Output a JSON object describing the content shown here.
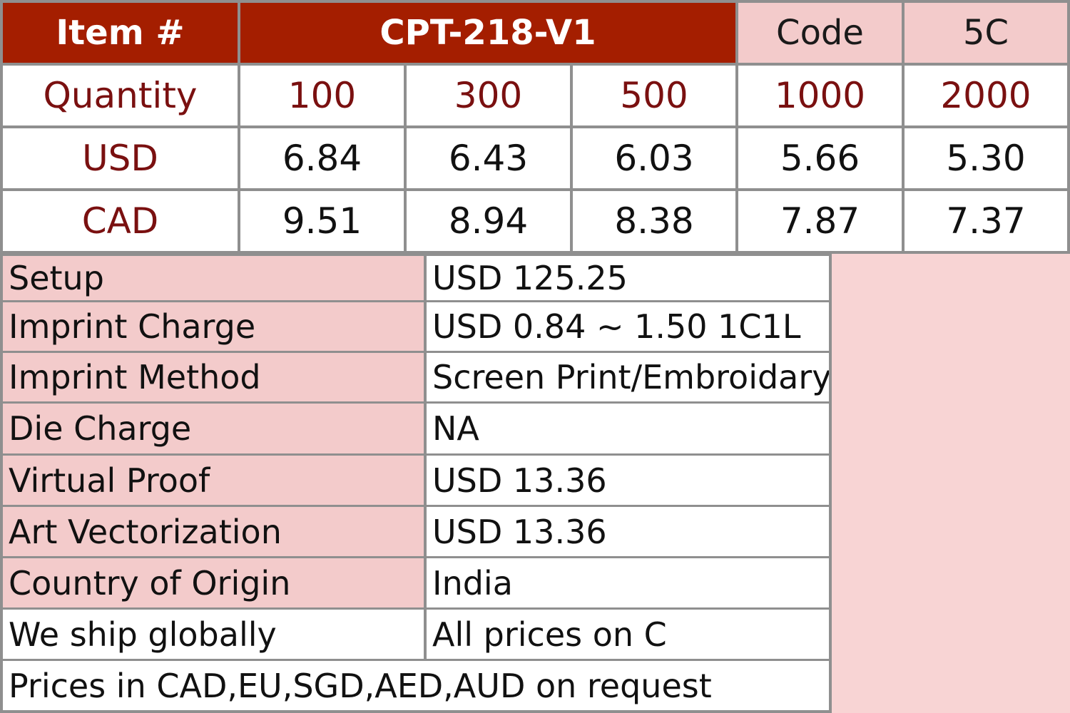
{
  "header": {
    "item_label": "Item #",
    "item_value": "CPT-218-V1",
    "code_label": "Code",
    "code_value": "5C"
  },
  "quantity_row": {
    "label": "Quantity",
    "values": [
      "100",
      "300",
      "500",
      "1000",
      "2000"
    ]
  },
  "price_rows": [
    {
      "currency": "USD",
      "prices": [
        "6.84",
        "6.43",
        "6.03",
        "5.66",
        "5.30"
      ]
    },
    {
      "currency": "CAD",
      "prices": [
        "9.51",
        "8.94",
        "8.38",
        "7.87",
        "7.37"
      ]
    }
  ],
  "details": [
    {
      "label": "Setup",
      "value": "USD 125.25"
    },
    {
      "label": "Imprint Charge",
      "value": "USD 0.84 ~ 1.50 1C1L"
    },
    {
      "label": "Imprint Method",
      "value": "Screen Print/Embroidary"
    },
    {
      "label": "Die Charge",
      "value": "NA"
    },
    {
      "label": "Virtual Proof",
      "value": "USD 13.36"
    },
    {
      "label": "Art Vectorization",
      "value": "USD 13.36"
    },
    {
      "label": "Country of Origin",
      "value": "India"
    },
    {
      "label": "We ship globally",
      "value": "All prices on C"
    }
  ],
  "footer_note": "Prices in CAD,EU,SGD,AED,AUD on request",
  "colors": {
    "header_dark": "#a41e00",
    "header_pink": "#f3cbcb",
    "label_pink": "#f3cbcb",
    "accent_text": "#7a1010",
    "border": "#8f8f8f"
  }
}
